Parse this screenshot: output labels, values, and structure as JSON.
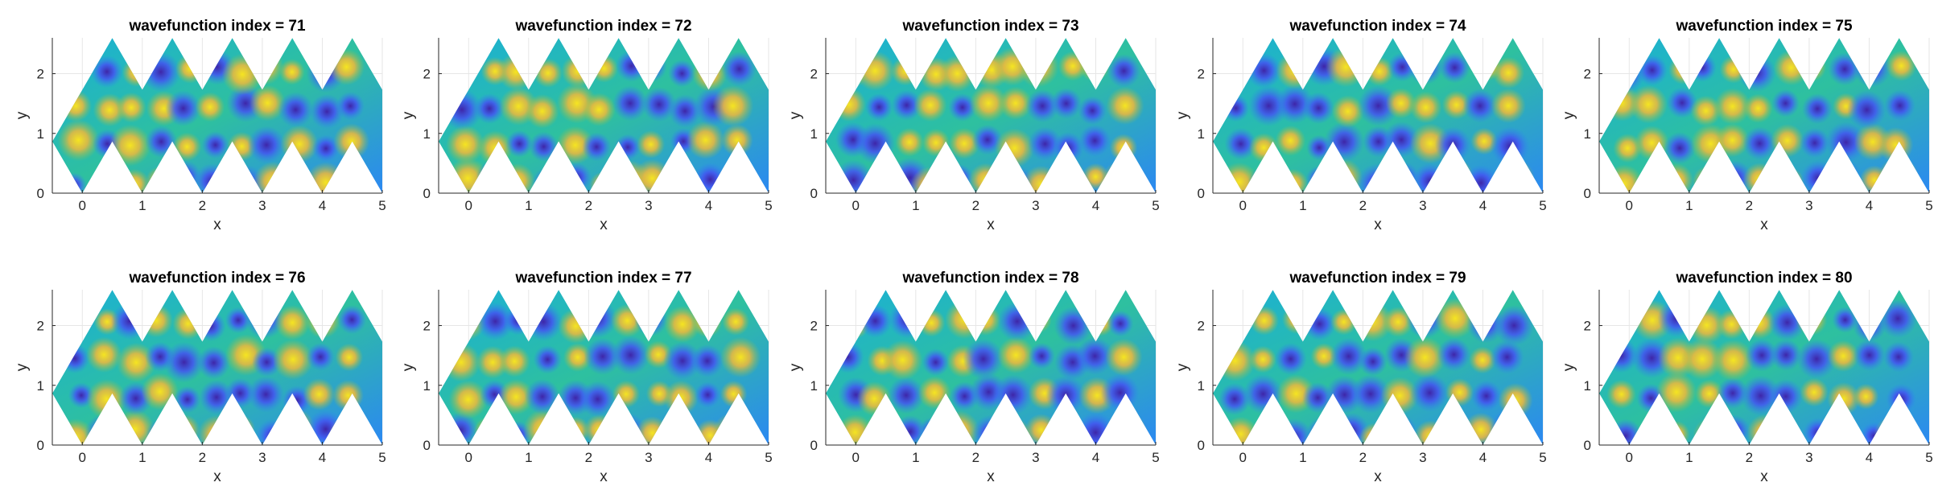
{
  "chart_data": {
    "type": "heatmap",
    "layout": {
      "rows": 2,
      "cols": 5
    },
    "xlabel": "x",
    "ylabel": "y",
    "xlim": [
      -0.5,
      5.0
    ],
    "ylim": [
      0,
      2.6
    ],
    "xticks": [
      0,
      1,
      2,
      3,
      4,
      5
    ],
    "yticks": [
      0,
      1,
      2
    ],
    "grid": true,
    "colormap": [
      "#3e26a8",
      "#4353f1",
      "#2c88f2",
      "#1bb0d5",
      "#2ec09f",
      "#9cc042",
      "#f1b93a",
      "#f5e521"
    ],
    "domain_vertices_x": [
      -0.5,
      0.0,
      0.5,
      1.0,
      1.5,
      2.0,
      2.5,
      3.0,
      3.5,
      4.0,
      4.5,
      5.0
    ],
    "domain_vertices_y": [
      0.0,
      0.866,
      1.732,
      2.598
    ],
    "panels": [
      {
        "title": "wavefunction index = 71",
        "index": 71
      },
      {
        "title": "wavefunction index = 72",
        "index": 72
      },
      {
        "title": "wavefunction index = 73",
        "index": 73
      },
      {
        "title": "wavefunction index = 74",
        "index": 74
      },
      {
        "title": "wavefunction index = 75",
        "index": 75
      },
      {
        "title": "wavefunction index = 76",
        "index": 76
      },
      {
        "title": "wavefunction index = 77",
        "index": 77
      },
      {
        "title": "wavefunction index = 78",
        "index": 78
      },
      {
        "title": "wavefunction index = 79",
        "index": 79
      },
      {
        "title": "wavefunction index = 80",
        "index": 80
      }
    ]
  }
}
